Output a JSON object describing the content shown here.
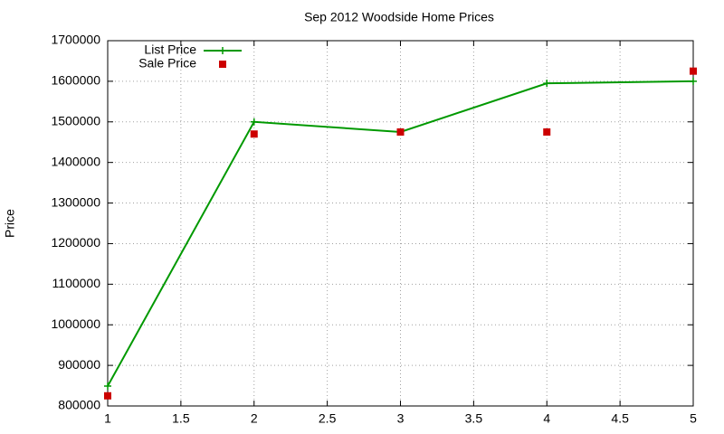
{
  "chart_data": {
    "type": "line",
    "title": "Sep 2012 Woodside Home Prices",
    "ylabel": "Price",
    "x": [
      1,
      2,
      3,
      4,
      5
    ],
    "series": [
      {
        "name": "List Price",
        "color": "#009900",
        "style": "linespoints",
        "values": [
          849000,
          1500000,
          1475000,
          1595000,
          1600000
        ]
      },
      {
        "name": "Sale Price",
        "color": "#cc0000",
        "style": "points",
        "values": [
          825000,
          1470000,
          1475000,
          1475000,
          1625000
        ]
      }
    ],
    "xlim": [
      1,
      5
    ],
    "xticks": [
      1,
      1.5,
      2,
      2.5,
      3,
      3.5,
      4,
      4.5,
      5
    ],
    "ylim": [
      800000,
      1700000
    ],
    "yticks": [
      800000,
      900000,
      1000000,
      1100000,
      1200000,
      1300000,
      1400000,
      1500000,
      1600000,
      1700000
    ],
    "grid": true,
    "legend": "top-left"
  }
}
